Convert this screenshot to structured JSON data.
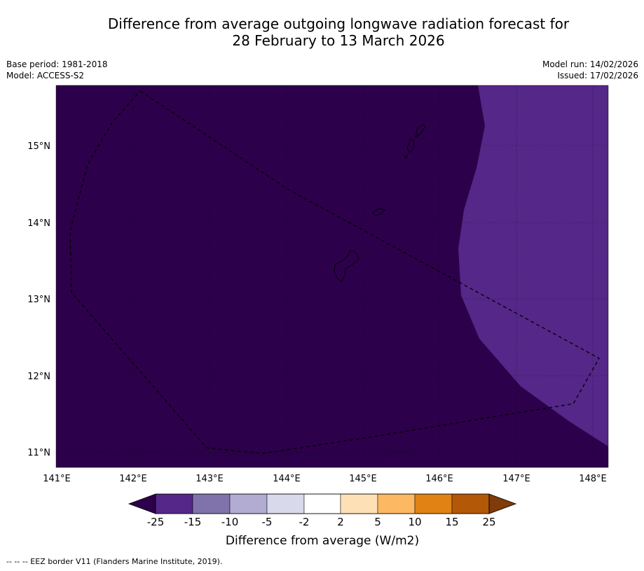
{
  "title": {
    "line1": "Difference from average outgoing longwave radiation forecast for",
    "line2": "28 February to 13 March 2026"
  },
  "meta": {
    "base_period": "Base period: 1981-2018",
    "model": "Model: ACCESS-S2",
    "model_run": "Model run: 14/02/2026",
    "issued": "Issued: 17/02/2026"
  },
  "map": {
    "x_ticks": [
      "141°E",
      "142°E",
      "143°E",
      "144°E",
      "145°E",
      "146°E",
      "147°E",
      "148°E"
    ],
    "y_ticks": [
      "15°N",
      "14°N",
      "13°N",
      "12°N",
      "11°N"
    ],
    "copyright": "© Commonwealth of Australia 2026, Bureau of Meteorology, supported by COSPPac",
    "lon_range": [
      141,
      148.2
    ],
    "lat_range": [
      10.8,
      15.8
    ],
    "colors": {
      "below_minus25": "#2d004b",
      "minus25_to_minus15": "#542788",
      "grid": "#000000"
    }
  },
  "colorbar": {
    "ticks": [
      "-25",
      "-15",
      "-10",
      "-5",
      "-2",
      "2",
      "5",
      "10",
      "15",
      "25"
    ],
    "colors": [
      "#2d004b",
      "#542788",
      "#8073ac",
      "#b2abd2",
      "#d8daeb",
      "#ffffff",
      "#fee0b6",
      "#fdb863",
      "#e08214",
      "#b35806",
      "#7f3b08"
    ],
    "label": "Difference from average (W/m2)"
  },
  "footnote": "--  --  -- EEZ border V11 (Flanders Marine Institute, 2019)."
}
